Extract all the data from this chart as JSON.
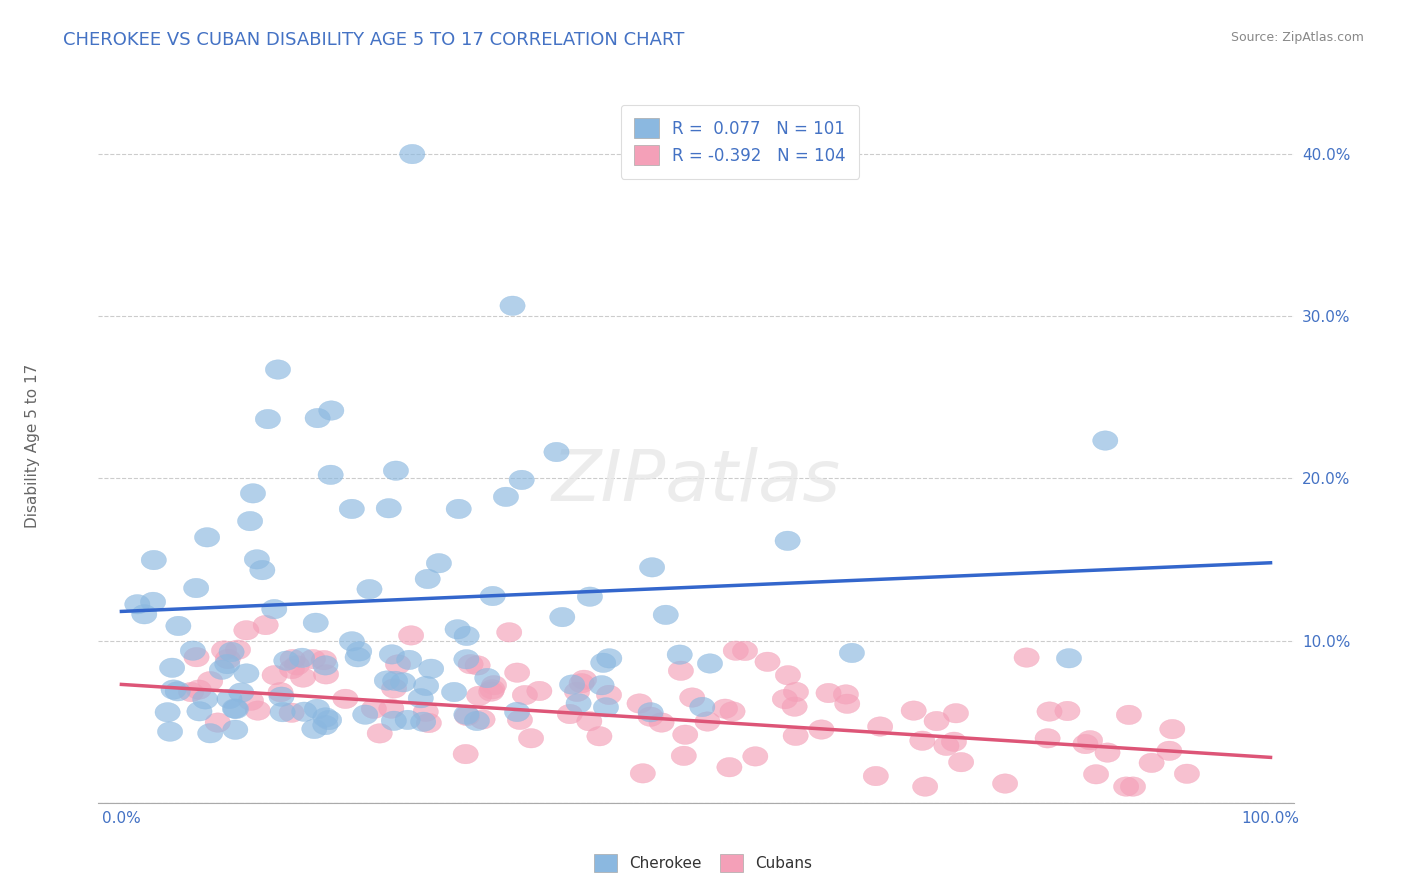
{
  "title": "CHEROKEE VS CUBAN DISABILITY AGE 5 TO 17 CORRELATION CHART",
  "source": "Source: ZipAtlas.com",
  "ylabel": "Disability Age 5 to 17",
  "xlim": [
    -0.02,
    1.02
  ],
  "ylim": [
    0.0,
    0.44
  ],
  "xticks": [
    0.0,
    0.1,
    0.2,
    0.3,
    0.4,
    0.5,
    0.6,
    0.7,
    0.8,
    0.9,
    1.0
  ],
  "xticklabels": [
    "0.0%",
    "",
    "",
    "",
    "",
    "",
    "",
    "",
    "",
    "",
    "100.0%"
  ],
  "yticks": [
    0.0,
    0.1,
    0.2,
    0.3,
    0.4
  ],
  "yticklabels": [
    "",
    "10.0%",
    "20.0%",
    "30.0%",
    "40.0%"
  ],
  "cherokee_color": "#8BB8E0",
  "cuban_color": "#F4A0B8",
  "cherokee_line_color": "#3366CC",
  "cuban_line_color": "#DD5577",
  "cherokee_R": 0.077,
  "cherokee_N": 101,
  "cuban_R": -0.392,
  "cuban_N": 104,
  "background_color": "#ffffff",
  "grid_color": "#cccccc",
  "title_color": "#4472C4",
  "tick_color": "#4472C4",
  "cherokee_line_y0": 0.118,
  "cherokee_line_y1": 0.148,
  "cuban_line_y0": 0.073,
  "cuban_line_y1": 0.028
}
